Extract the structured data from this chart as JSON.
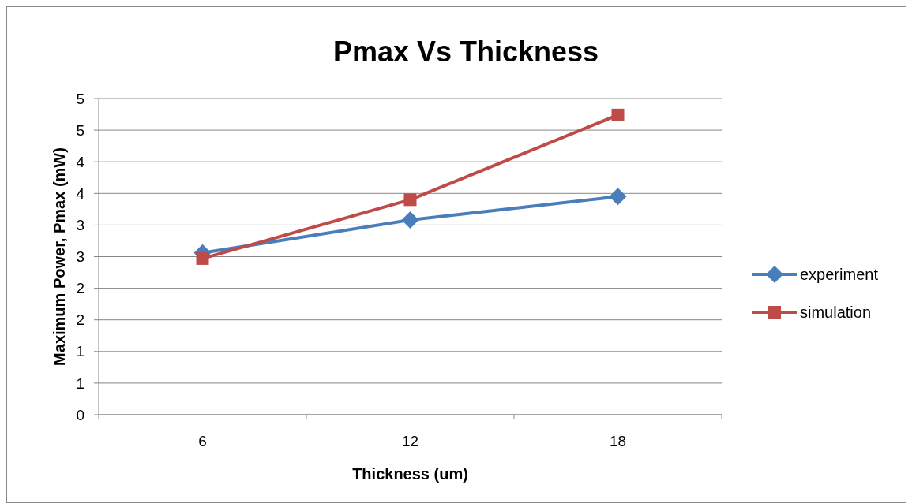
{
  "chart_data": {
    "type": "line",
    "title": "Pmax Vs Thickness",
    "xlabel": "Thickness (um)",
    "ylabel": "Maximum Power, Pmax (mW)",
    "categories": [
      "6",
      "12",
      "18"
    ],
    "series": [
      {
        "name": "experiment",
        "color": "#4a7ebb",
        "marker": "diamond",
        "values": [
          2.56,
          3.08,
          3.45
        ]
      },
      {
        "name": "simulation",
        "color": "#be4b48",
        "marker": "square",
        "values": [
          2.47,
          3.4,
          4.74
        ]
      }
    ],
    "ylim": [
      0,
      5
    ],
    "yticks": [
      {
        "value": 0,
        "label": "0"
      },
      {
        "value": 0.5,
        "label": "1"
      },
      {
        "value": 1,
        "label": "1"
      },
      {
        "value": 1.5,
        "label": "2"
      },
      {
        "value": 2,
        "label": "2"
      },
      {
        "value": 2.5,
        "label": "3"
      },
      {
        "value": 3,
        "label": "3"
      },
      {
        "value": 3.5,
        "label": "4"
      },
      {
        "value": 4,
        "label": "4"
      },
      {
        "value": 4.5,
        "label": "5"
      },
      {
        "value": 5,
        "label": "5"
      }
    ],
    "grid": "y",
    "legend": "right"
  }
}
